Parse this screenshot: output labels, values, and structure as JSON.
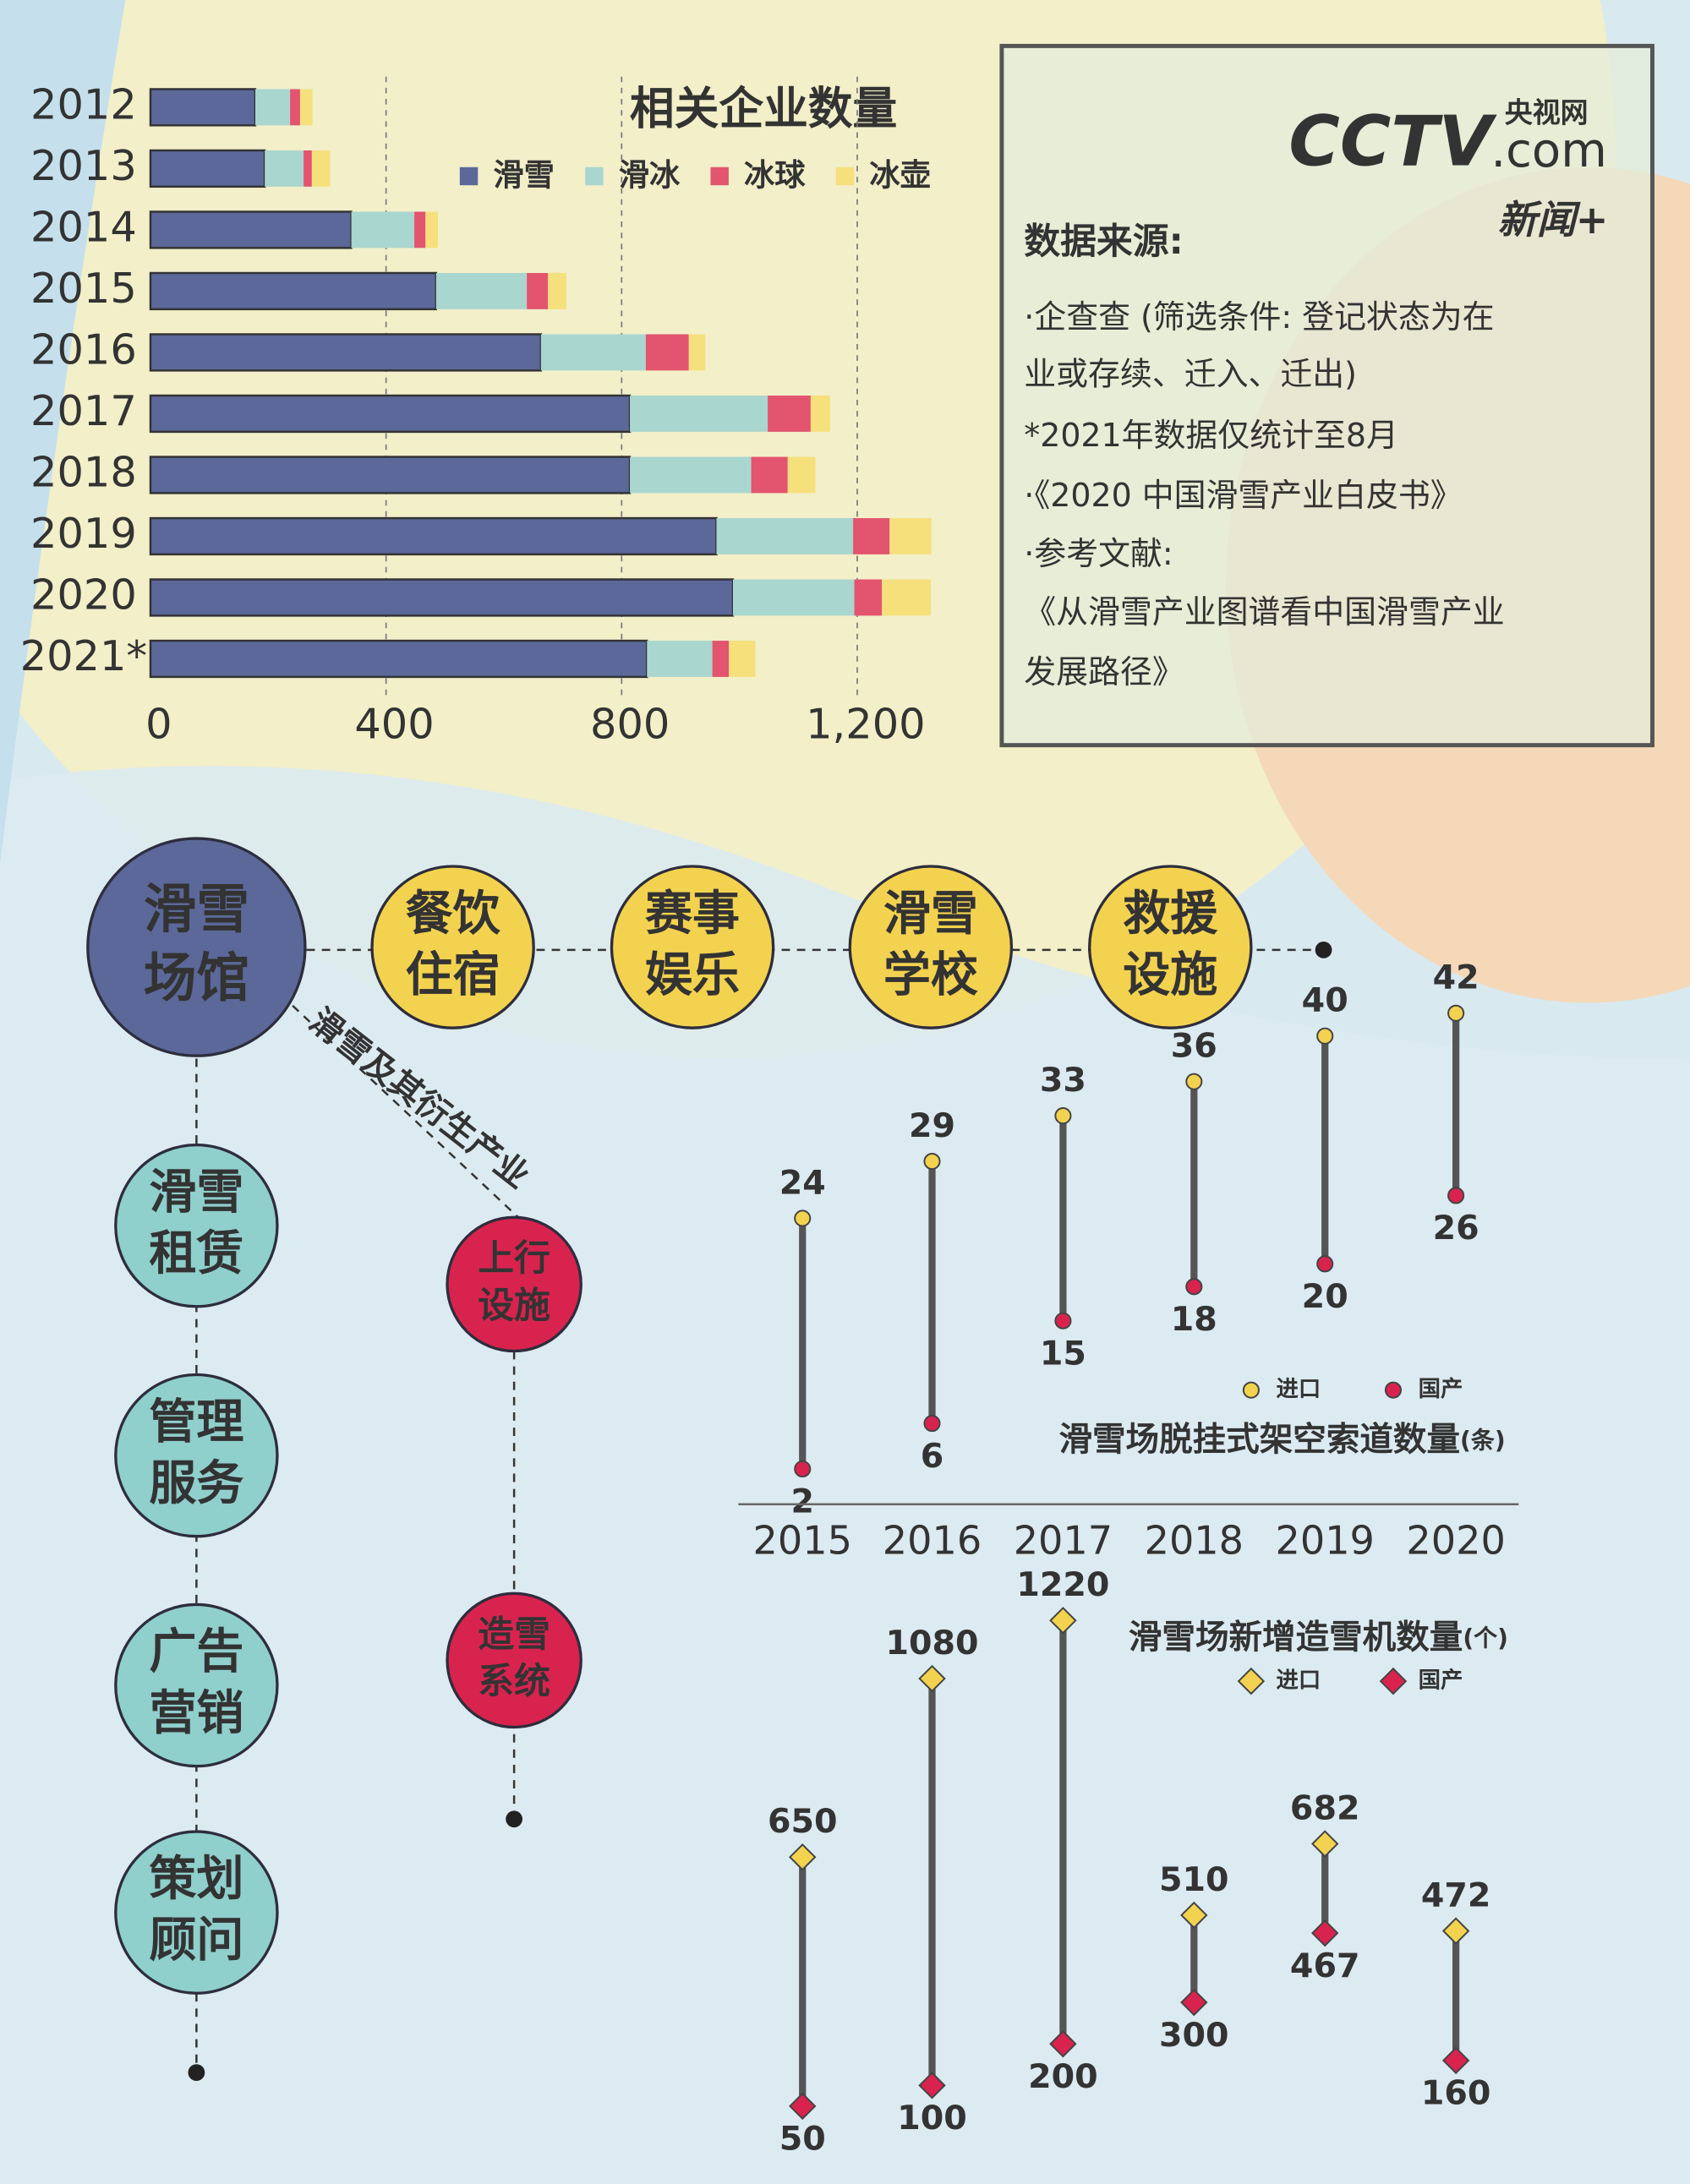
{
  "chart_data": [
    {
      "type": "bar",
      "orientation": "horizontal",
      "stacked": true,
      "title": "相关企业数量",
      "categories": [
        "2012",
        "2013",
        "2014",
        "2015",
        "2016",
        "2017",
        "2018",
        "2019",
        "2020",
        "2021*"
      ],
      "series": [
        {
          "name": "滑雪",
          "color": "#5b6899",
          "values": [
            178,
            194,
            341,
            485,
            663,
            814,
            814,
            961,
            989,
            843
          ]
        },
        {
          "name": "滑冰",
          "color": "#a9d6cf",
          "values": [
            59,
            66,
            107,
            154,
            178,
            234,
            206,
            232,
            206,
            111
          ]
        },
        {
          "name": "冰球",
          "color": "#e3546f",
          "values": [
            17,
            14,
            19,
            36,
            73,
            73,
            62,
            62,
            47,
            28
          ]
        },
        {
          "name": "冰壶",
          "color": "#f6e07c",
          "values": [
            21,
            31,
            21,
            31,
            28,
            33,
            47,
            71,
            83,
            45
          ]
        }
      ],
      "xlim": [
        0,
        1320
      ],
      "xticks": [
        0,
        400,
        800,
        {
          "value": 1200,
          "label": "1,200"
        }
      ],
      "grid": true
    },
    {
      "type": "dumbbell",
      "title": "滑雪场脱挂式架空索道数量",
      "unit": "(条)",
      "marker": "circle",
      "categories": [
        "2015",
        "2016",
        "2017",
        "2018",
        "2019",
        "2020"
      ],
      "series": [
        {
          "name": "进口",
          "color": "#f3d24f",
          "values": [
            24,
            29,
            33,
            36,
            40,
            42
          ]
        },
        {
          "name": "国产",
          "color": "#d9234f",
          "values": [
            2,
            6,
            15,
            18,
            20,
            26
          ]
        }
      ],
      "ylim": [
        0,
        45
      ]
    },
    {
      "type": "dumbbell",
      "title": "滑雪场新增造雪机数量",
      "unit": "(个)",
      "marker": "diamond",
      "series": [
        {
          "name": "进口",
          "color": "#f3d24f",
          "values": [
            650,
            1080,
            1220,
            510,
            682,
            472
          ]
        },
        {
          "name": "国产",
          "color": "#d9234f",
          "values": [
            50,
            100,
            200,
            300,
            467,
            160
          ]
        }
      ],
      "ylim": [
        0,
        1250
      ]
    }
  ],
  "source": {
    "heading": "数据来源:",
    "lines": [
      "·企查查 (筛选条件: 登记状态为在",
      "业或存续、迁入、迁出)",
      "*2021年数据仅统计至8月",
      "·《2020 中国滑雪产业白皮书》",
      "·参考文献:",
      "《从滑雪产业图谱看中国滑雪产业",
      "发展路径》"
    ],
    "logo": {
      "brand": "CCTV",
      "domain": ".com",
      "site": "央视网",
      "news": "新闻+"
    }
  },
  "diagram": {
    "center": [
      "滑雪",
      "场馆"
    ],
    "branch_label": "滑雪及其衍生产业",
    "row": [
      [
        "餐饮",
        "住宿"
      ],
      [
        "赛事",
        "娱乐"
      ],
      [
        "滑雪",
        "学校"
      ],
      [
        "救援",
        "设施"
      ]
    ],
    "column": [
      [
        "滑雪",
        "租赁"
      ],
      [
        "管理",
        "服务"
      ],
      [
        "广告",
        "营销"
      ],
      [
        "策划",
        "顾问"
      ]
    ],
    "branch": [
      [
        "上行",
        "设施"
      ],
      [
        "造雪",
        "系统"
      ]
    ]
  }
}
